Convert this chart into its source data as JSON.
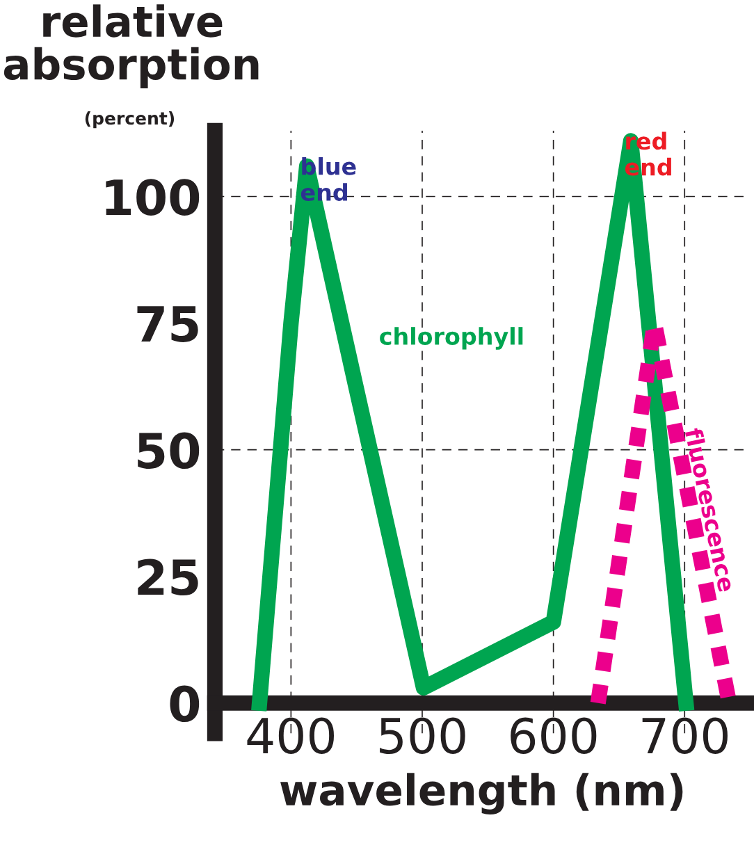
{
  "chart_data": {
    "type": "line",
    "ylabel": "relative absorption",
    "xlabel": "wavelength (nm)",
    "series": [
      {
        "name": "chlorophyll",
        "color": "#00a550",
        "x": [
          376,
          400,
          412,
          449,
          501,
          600,
          659,
          701
        ],
        "values": [
          0,
          75,
          106,
          63,
          3,
          16,
          111,
          0
        ],
        "line_style": "solid"
      },
      {
        "name": "fluorescence",
        "color": "#ec008c",
        "x": [
          634,
          677,
          734
        ],
        "values": [
          0,
          75,
          0
        ],
        "line_style": "dashed"
      }
    ],
    "xlim": [
      342,
      750
    ],
    "ylim": [
      -6,
      113
    ],
    "xticks": [
      400,
      500,
      600,
      700
    ],
    "yticks": [
      0,
      25,
      50,
      75,
      100
    ],
    "grid": "x",
    "marker": "none",
    "legend": false,
    "ref_lines": [
      {
        "axis": "y",
        "value": 50,
        "line_style": "dashed",
        "color": "#231f20"
      },
      {
        "axis": "y",
        "value": 100,
        "line_style": "dashed",
        "color": "#231f20"
      }
    ],
    "annotations": [
      "(percent)",
      {
        "text": "blue\nend",
        "x": 412,
        "y": 106
      },
      {
        "text": "red\nend",
        "x": 659,
        "y": 111
      }
    ]
  }
}
